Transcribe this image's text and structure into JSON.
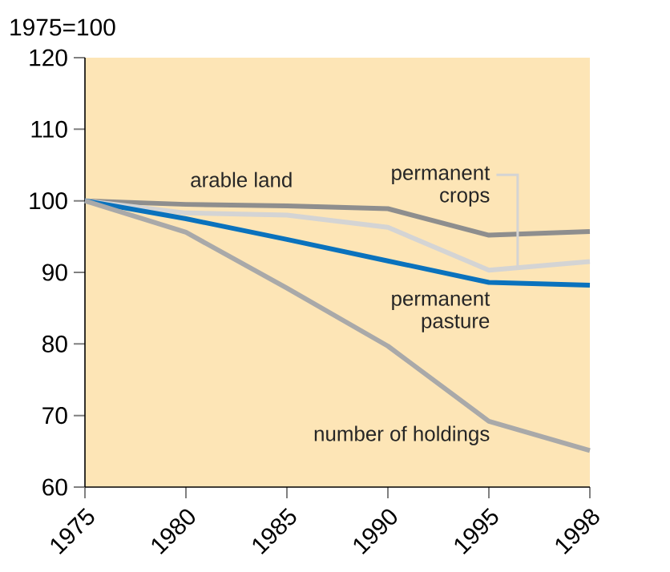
{
  "chart_data": {
    "type": "line",
    "ylabel": "1975=100",
    "categories": [
      "1975",
      "1980",
      "1985",
      "1990",
      "1995",
      "1998"
    ],
    "series": [
      {
        "name": "arable land",
        "color": "#8e8e8e",
        "values": [
          100,
          99.5,
          99.3,
          98.9,
          95.2,
          95.7
        ]
      },
      {
        "name": "permanent crops",
        "color": "#d4d4d4",
        "values": [
          100,
          98.3,
          98,
          96.3,
          90.3,
          91.5
        ]
      },
      {
        "name": "permanent pasture",
        "color": "#0a72bd",
        "values": [
          100,
          97.5,
          94.6,
          91.6,
          88.6,
          88.2
        ]
      },
      {
        "name": "number of holdings",
        "color": "#a9a9a9",
        "values": [
          100,
          95.6,
          87.8,
          79.7,
          69.2,
          65.1
        ]
      }
    ],
    "ylim": [
      60,
      120
    ],
    "yticks": [
      60,
      70,
      80,
      90,
      100,
      110,
      120
    ],
    "legend": false,
    "grid": false,
    "marker": "none",
    "line_style": "solid"
  }
}
